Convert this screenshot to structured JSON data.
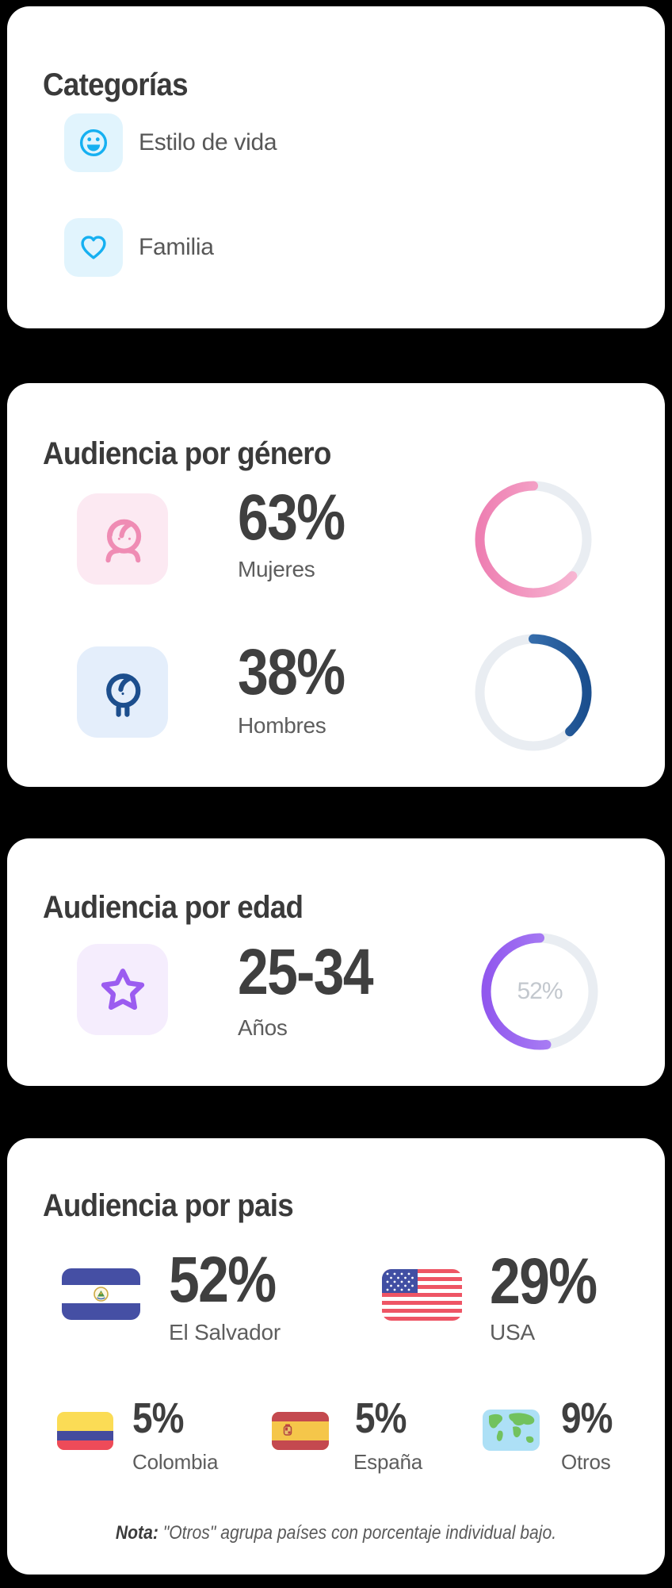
{
  "page": {
    "background": "#000000",
    "card_background": "#ffffff"
  },
  "cards": {
    "categories": {
      "title": "Categorías",
      "accent_color": "#16b0f1",
      "icon_bg_color": "#e1f4fd",
      "items": [
        {
          "label": "Estilo de vida",
          "icon": "smiley-icon"
        },
        {
          "label": "Familia",
          "icon": "heart-icon"
        }
      ]
    },
    "gender": {
      "title": "Audiencia por género",
      "rows": [
        {
          "value": "63%",
          "label": "Mujeres",
          "icon": "woman-icon",
          "accent_color": "#ee7fb2",
          "icon_bg_color": "#fce9f2"
        },
        {
          "value": "38%",
          "label": "Hombres",
          "icon": "man-icon",
          "accent_color": "#1c4e8d",
          "icon_bg_color": "#e4eefb"
        }
      ]
    },
    "age": {
      "title": "Audiencia por edad",
      "value": "25-34",
      "label": "Años",
      "icon": "star-icon",
      "accent_color": "#9b5cf0",
      "icon_bg_color": "#f5edfd"
    },
    "country": {
      "title": "Audiencia por pais",
      "primary": [
        {
          "value": "52%",
          "label": "El Salvador",
          "icon": "flag-el-salvador"
        },
        {
          "value": "29%",
          "label": "USA",
          "icon": "flag-usa"
        }
      ],
      "secondary": [
        {
          "value": "5%",
          "label": "Colombia",
          "icon": "flag-colombia"
        },
        {
          "value": "5%",
          "label": "España",
          "icon": "flag-espana"
        },
        {
          "value": "9%",
          "label": "Otros",
          "icon": "world-map-icon"
        }
      ],
      "note": {
        "bold": "Nota:",
        "text": " \"Otros\" agrupa países con porcentaje individual bajo."
      }
    }
  },
  "rings": {
    "mujeres": {
      "percent": 63,
      "direction": "ccw",
      "color_top": "#f8bcd6",
      "color_bottom": "#ee7fb2",
      "track": "#e9edf2"
    },
    "hombres": {
      "percent": 38,
      "direction": "cw",
      "color_top": "#4e89c7",
      "color_bottom": "#1b4f8e",
      "track": "#e9edf2"
    },
    "edad": {
      "percent": 52,
      "direction": "ccw",
      "color_top": "#b795f7",
      "color_bottom": "#9158ee",
      "track": "#e9edf2",
      "center_label": "52%"
    }
  },
  "chart_data": [
    {
      "type": "pie",
      "style": "donut-rings",
      "title": "Audiencia por género",
      "series": [
        {
          "name": "Mujeres",
          "value": 63
        },
        {
          "name": "Hombres",
          "value": 38
        }
      ],
      "unit": "%"
    },
    {
      "type": "pie",
      "style": "donut",
      "title": "Audiencia por edad",
      "series": [
        {
          "name": "25-34 Años",
          "value": 52
        }
      ],
      "unit": "%"
    },
    {
      "type": "pie",
      "style": "flag-list",
      "title": "Audiencia por pais",
      "series": [
        {
          "name": "El Salvador",
          "value": 52
        },
        {
          "name": "USA",
          "value": 29
        },
        {
          "name": "Colombia",
          "value": 5
        },
        {
          "name": "España",
          "value": 5
        },
        {
          "name": "Otros",
          "value": 9
        }
      ],
      "unit": "%"
    }
  ]
}
